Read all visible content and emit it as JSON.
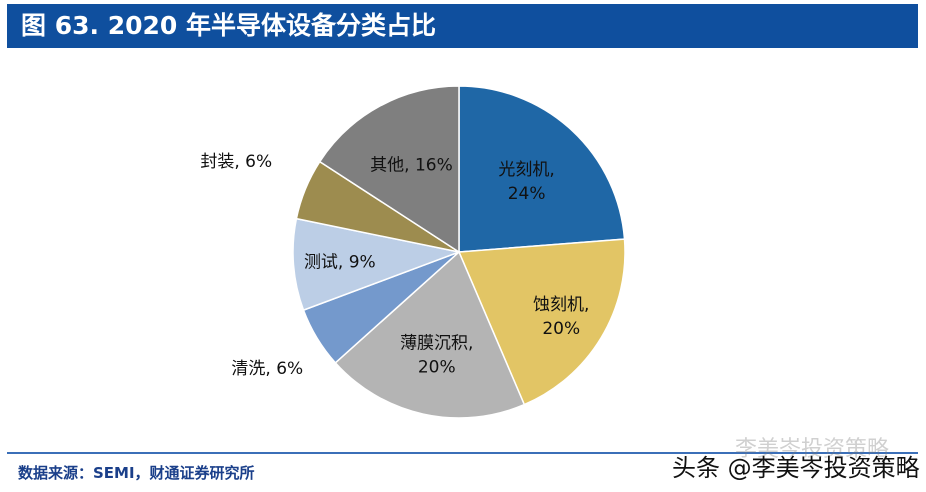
{
  "header": {
    "title": "图 63. 2020 年半导体设备分类占比"
  },
  "source": "数据来源：SEMI，财通证券研究所",
  "watermark": {
    "faded": "李美岑投资策略",
    "main": "头条 @李美岑投资策略"
  },
  "chart_data": {
    "type": "pie",
    "title": "图 63. 2020 年半导体设备分类占比",
    "start": "12 o'clock, clockwise",
    "slices": [
      {
        "label": "光刻机",
        "value": 24,
        "text": "24%",
        "color": "#1f67a6"
      },
      {
        "label": "蚀刻机",
        "value": 20,
        "text": "20%",
        "color": "#e2c565"
      },
      {
        "label": "薄膜沉积",
        "value": 20,
        "text": "20%",
        "color": "#b4b4b4"
      },
      {
        "label": "清洗",
        "value": 6,
        "text": "6%",
        "color": "#7499cc"
      },
      {
        "label": "测试",
        "value": 9,
        "text": "9%",
        "color": "#bccee6"
      },
      {
        "label": "封装",
        "value": 6,
        "text": "6%",
        "color": "#9d8c4f"
      },
      {
        "label": "其他",
        "value": 16,
        "text": "16%",
        "color": "#7f7f7f"
      }
    ]
  }
}
